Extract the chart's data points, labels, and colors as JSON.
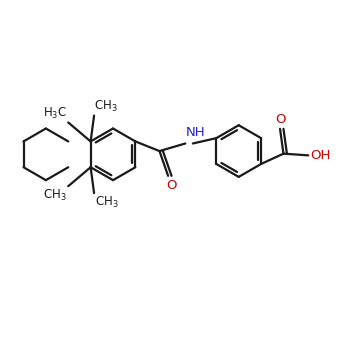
{
  "bg_color": "#ffffff",
  "bond_color": "#1a1a1a",
  "nitrogen_color": "#2222cc",
  "oxygen_color": "#cc0000",
  "line_width": 1.6,
  "font_size": 8.5,
  "figsize": [
    3.5,
    3.5
  ],
  "dpi": 100,
  "xlim": [
    0,
    10
  ],
  "ylim": [
    0,
    10
  ]
}
